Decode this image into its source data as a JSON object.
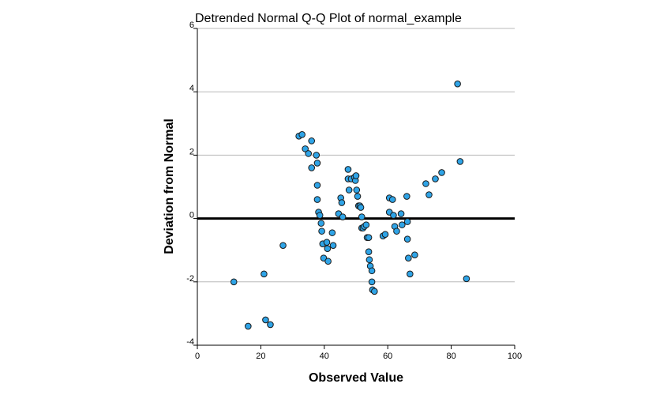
{
  "chart_data": {
    "type": "scatter",
    "title": "Detrended Normal Q-Q Plot of normal_example",
    "xlabel": "Observed Value",
    "ylabel": "Deviation from Normal",
    "xlim": [
      0,
      100
    ],
    "ylim": [
      -4,
      6
    ],
    "xticks": [
      "0",
      "20",
      "40",
      "60",
      "80",
      "100"
    ],
    "yticks": [
      "-4",
      "-2",
      "0",
      "2",
      "4",
      "6"
    ],
    "xtick_values": [
      0,
      20,
      40,
      60,
      80,
      100
    ],
    "ytick_values": [
      -4,
      -2,
      0,
      2,
      4,
      6
    ],
    "reference_line_y": 0,
    "grid": "horizontal",
    "colors": {
      "point_fill": "#2fa4e7",
      "point_stroke": "#1a1a1a",
      "gridline": "#b8b8b8",
      "reference": "#000000",
      "axis": "#000000"
    },
    "points": [
      [
        11.5,
        -2.0
      ],
      [
        16.0,
        -3.4
      ],
      [
        21.0,
        -1.75
      ],
      [
        21.5,
        -3.2
      ],
      [
        23.0,
        -3.35
      ],
      [
        27.0,
        -0.85
      ],
      [
        32.0,
        2.6
      ],
      [
        33.0,
        2.65
      ],
      [
        34.0,
        2.2
      ],
      [
        35.0,
        2.05
      ],
      [
        36.0,
        2.45
      ],
      [
        36.0,
        1.6
      ],
      [
        37.5,
        2.0
      ],
      [
        37.8,
        1.75
      ],
      [
        37.8,
        1.05
      ],
      [
        37.8,
        0.6
      ],
      [
        38.2,
        0.2
      ],
      [
        38.6,
        0.1
      ],
      [
        39.0,
        -0.15
      ],
      [
        39.2,
        -0.4
      ],
      [
        39.5,
        -0.8
      ],
      [
        39.8,
        -1.25
      ],
      [
        40.8,
        -0.75
      ],
      [
        41.0,
        -0.95
      ],
      [
        41.2,
        -1.35
      ],
      [
        42.5,
        -0.45
      ],
      [
        42.8,
        -0.85
      ],
      [
        44.5,
        0.15
      ],
      [
        45.2,
        0.65
      ],
      [
        45.5,
        0.5
      ],
      [
        45.8,
        0.05
      ],
      [
        47.5,
        1.55
      ],
      [
        47.5,
        1.25
      ],
      [
        47.8,
        0.9
      ],
      [
        48.5,
        1.25
      ],
      [
        49.5,
        1.3
      ],
      [
        49.8,
        1.2
      ],
      [
        50.0,
        1.35
      ],
      [
        50.2,
        0.9
      ],
      [
        50.5,
        0.7
      ],
      [
        50.8,
        0.4
      ],
      [
        51.2,
        0.4
      ],
      [
        51.5,
        0.35
      ],
      [
        51.8,
        0.05
      ],
      [
        51.8,
        -0.3
      ],
      [
        52.2,
        -0.3
      ],
      [
        52.6,
        -0.25
      ],
      [
        53.2,
        -0.2
      ],
      [
        53.5,
        -0.6
      ],
      [
        54.0,
        -0.6
      ],
      [
        54.0,
        -1.05
      ],
      [
        54.2,
        -1.3
      ],
      [
        54.5,
        -1.5
      ],
      [
        55.0,
        -1.65
      ],
      [
        55.0,
        -2.0
      ],
      [
        55.2,
        -2.25
      ],
      [
        55.8,
        -2.3
      ],
      [
        58.5,
        -0.55
      ],
      [
        59.2,
        -0.5
      ],
      [
        60.5,
        0.65
      ],
      [
        60.5,
        0.2
      ],
      [
        61.5,
        0.6
      ],
      [
        61.8,
        0.1
      ],
      [
        62.2,
        -0.25
      ],
      [
        62.8,
        -0.4
      ],
      [
        64.2,
        0.15
      ],
      [
        64.5,
        -0.2
      ],
      [
        66.0,
        0.7
      ],
      [
        66.2,
        -0.1
      ],
      [
        66.2,
        -0.65
      ],
      [
        66.5,
        -1.25
      ],
      [
        67.0,
        -1.75
      ],
      [
        68.5,
        -1.15
      ],
      [
        72.0,
        1.1
      ],
      [
        73.0,
        0.75
      ],
      [
        75.0,
        1.25
      ],
      [
        77.0,
        1.45
      ],
      [
        82.0,
        4.25
      ],
      [
        82.8,
        1.8
      ],
      [
        84.8,
        -1.9
      ]
    ]
  }
}
